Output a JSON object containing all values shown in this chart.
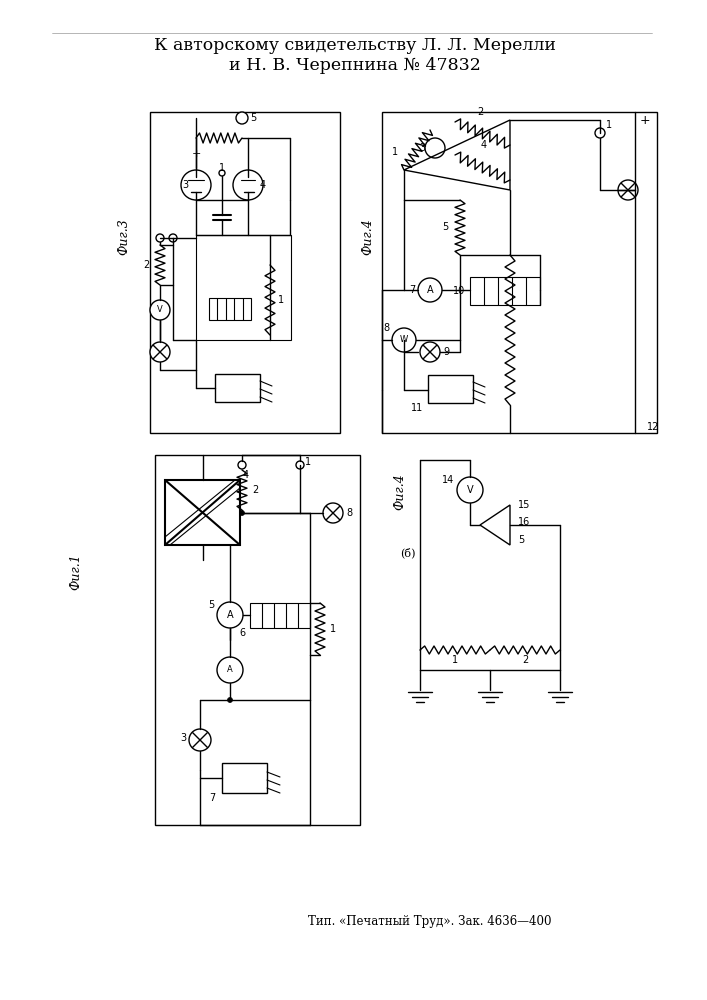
{
  "title_line1": "К авторскому свидетельству Л. Л. Мерелли",
  "title_line2": "и Н. В. Черепнина № 47832",
  "footer": "Тип. «Печатный Труд». Зак. 4636—4 00",
  "bg_color": "#ffffff",
  "line_color": "#000000",
  "title_fontsize": 12.5,
  "footer_fontsize": 8.5
}
